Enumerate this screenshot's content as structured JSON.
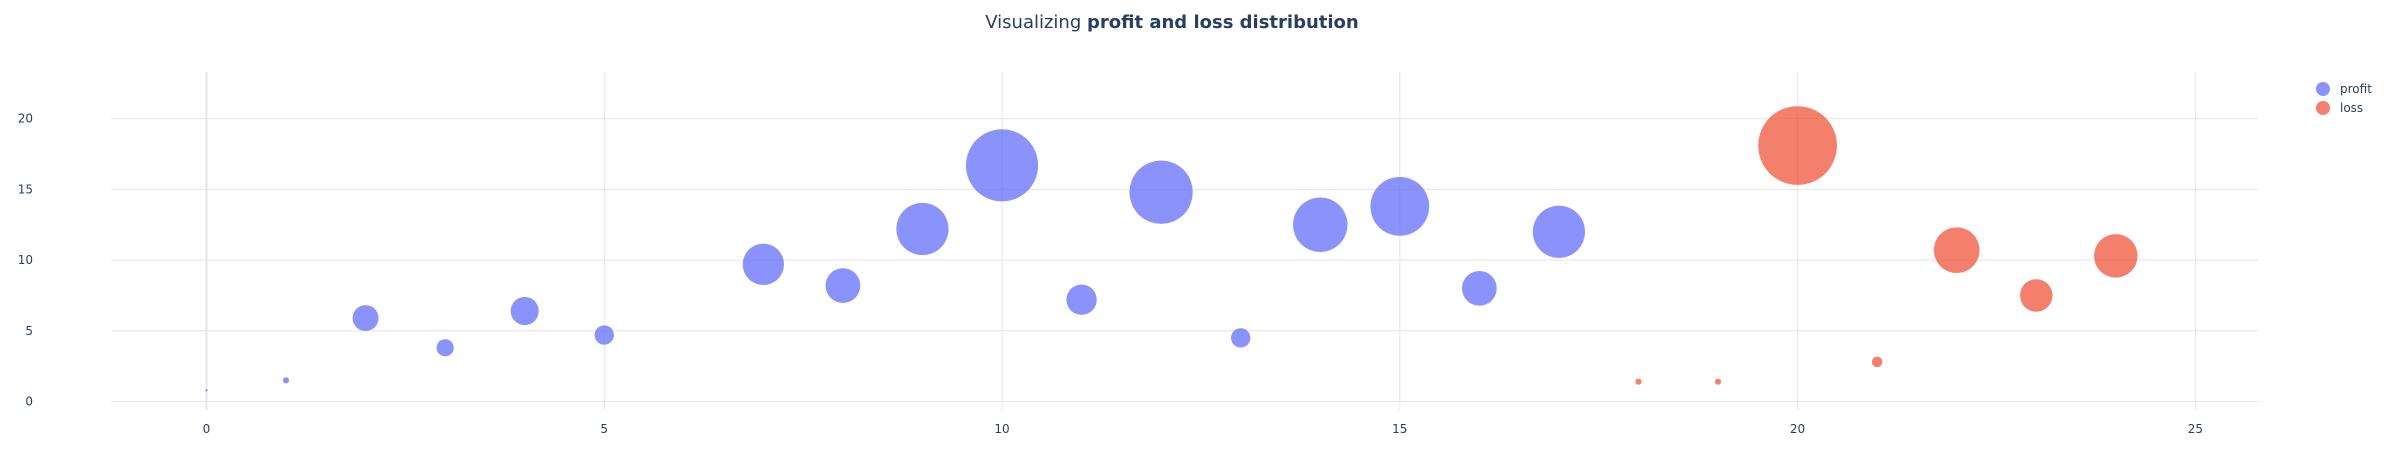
{
  "chart_data": {
    "type": "scatter",
    "title_prefix": "Visualizing ",
    "title_bold": "profit and loss distribution",
    "xlabel": "",
    "ylabel": "",
    "xlim": [
      -1.2,
      25.8
    ],
    "ylim": [
      -0.6,
      23.3
    ],
    "x_ticks": [
      0,
      5,
      10,
      15,
      20,
      25
    ],
    "y_ticks": [
      0,
      5,
      10,
      15,
      20
    ],
    "grid": true,
    "legend_position": "top-right",
    "series": [
      {
        "name": "profit",
        "color": "#636efa",
        "points": [
          {
            "x": 0,
            "y": 0.8,
            "size": 1
          },
          {
            "x": 1,
            "y": 1.5,
            "size": 3
          },
          {
            "x": 2,
            "y": 5.9,
            "size": 12
          },
          {
            "x": 3,
            "y": 3.8,
            "size": 8
          },
          {
            "x": 4,
            "y": 6.4,
            "size": 13
          },
          {
            "x": 5,
            "y": 4.7,
            "size": 9
          },
          {
            "x": 7,
            "y": 9.7,
            "size": 19
          },
          {
            "x": 8,
            "y": 8.2,
            "size": 16
          },
          {
            "x": 9,
            "y": 12.2,
            "size": 24
          },
          {
            "x": 10,
            "y": 16.7,
            "size": 33
          },
          {
            "x": 11,
            "y": 7.2,
            "size": 14
          },
          {
            "x": 12,
            "y": 14.8,
            "size": 29
          },
          {
            "x": 13,
            "y": 4.5,
            "size": 9
          },
          {
            "x": 14,
            "y": 12.5,
            "size": 25
          },
          {
            "x": 15,
            "y": 13.8,
            "size": 27
          },
          {
            "x": 16,
            "y": 8.0,
            "size": 16
          },
          {
            "x": 17,
            "y": 12.0,
            "size": 24
          }
        ]
      },
      {
        "name": "loss",
        "color": "#ef553b",
        "points": [
          {
            "x": 18,
            "y": 1.4,
            "size": 3
          },
          {
            "x": 19,
            "y": 1.4,
            "size": 3
          },
          {
            "x": 20,
            "y": 18.1,
            "size": 36
          },
          {
            "x": 21,
            "y": 2.8,
            "size": 5
          },
          {
            "x": 22,
            "y": 10.7,
            "size": 21
          },
          {
            "x": 23,
            "y": 7.5,
            "size": 15
          },
          {
            "x": 24,
            "y": 10.3,
            "size": 20
          }
        ]
      }
    ]
  }
}
